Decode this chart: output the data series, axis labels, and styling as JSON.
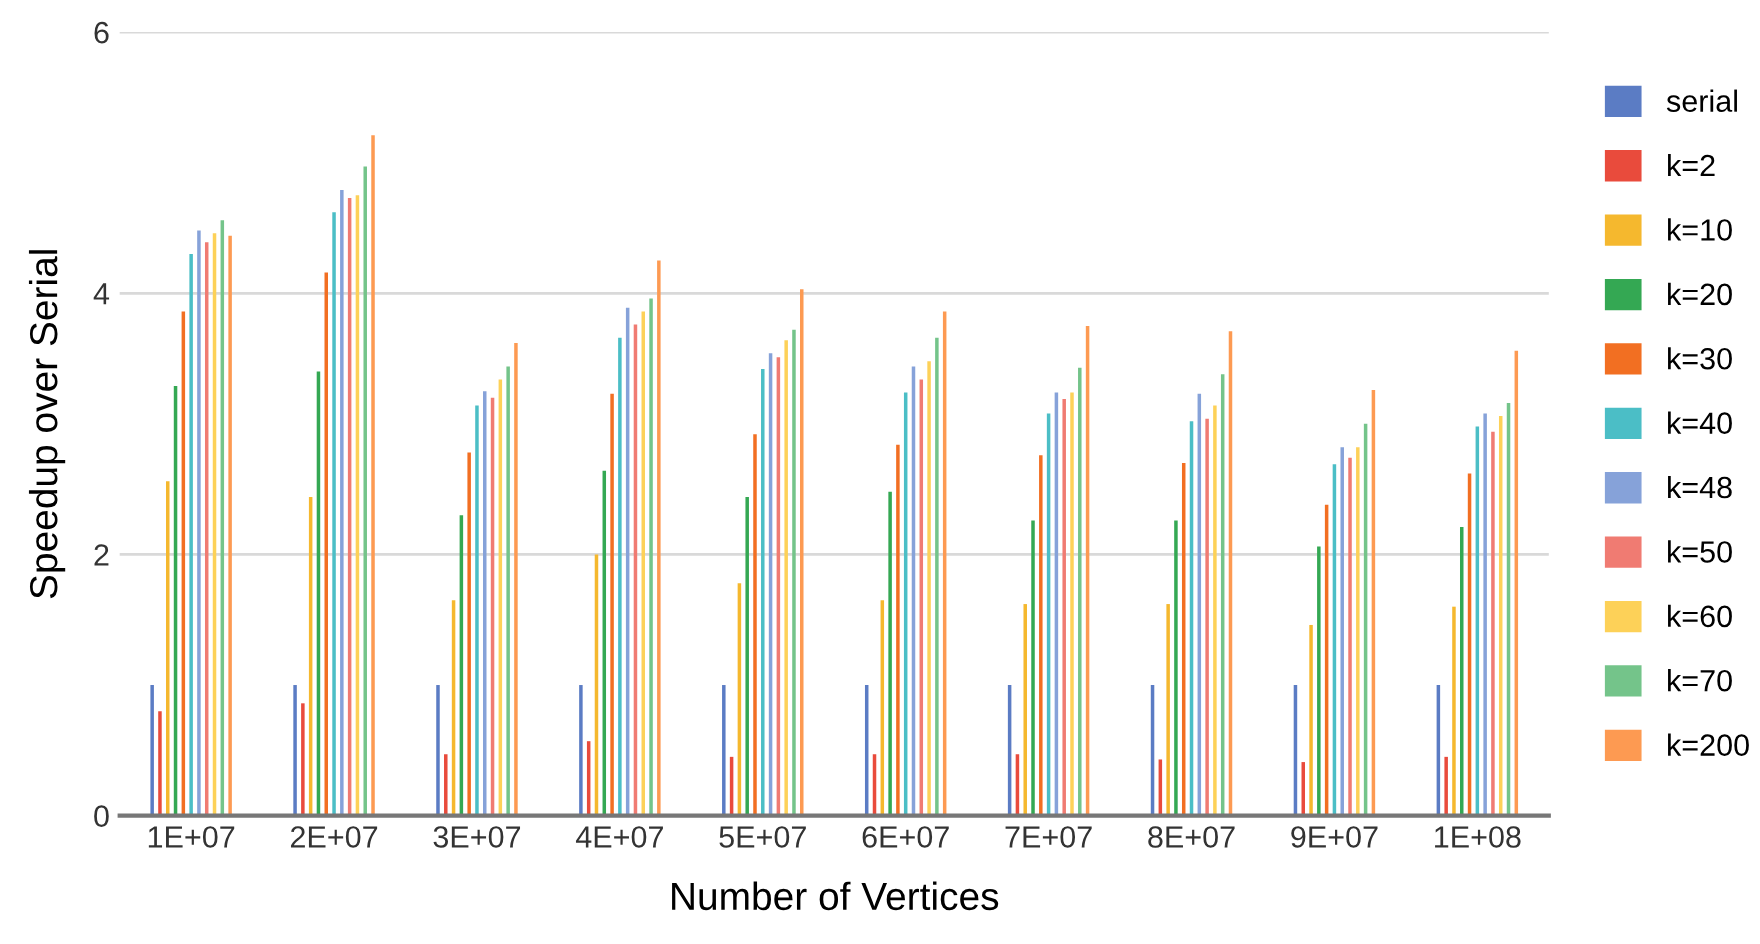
{
  "chart_data": {
    "type": "bar",
    "xlabel": "Number of Vertices",
    "ylabel": "Speedup over Serial",
    "categories": [
      "1E+07",
      "2E+07",
      "3E+07",
      "4E+07",
      "5E+07",
      "6E+07",
      "7E+07",
      "8E+07",
      "9E+07",
      "1E+08"
    ],
    "ylim": [
      0,
      6
    ],
    "yticks": [
      0,
      2,
      4,
      6
    ],
    "grid": "y",
    "legend": "right",
    "series": [
      {
        "name": "serial",
        "color": "#5b7cc4",
        "values": [
          1,
          1,
          1,
          1,
          1,
          1,
          1,
          1,
          1,
          1
        ]
      },
      {
        "name": "k=2",
        "color": "#e94b3c",
        "values": [
          0.8,
          0.86,
          0.47,
          0.57,
          0.45,
          0.47,
          0.47,
          0.43,
          0.41,
          0.45
        ]
      },
      {
        "name": "k=10",
        "color": "#f5b82e",
        "values": [
          2.56,
          2.44,
          1.65,
          2.0,
          1.78,
          1.65,
          1.62,
          1.62,
          1.46,
          1.6
        ]
      },
      {
        "name": "k=20",
        "color": "#34a853",
        "values": [
          3.29,
          3.4,
          2.3,
          2.64,
          2.44,
          2.48,
          2.26,
          2.26,
          2.06,
          2.21
        ]
      },
      {
        "name": "k=30",
        "color": "#f26f22",
        "values": [
          3.86,
          4.16,
          2.78,
          3.23,
          2.92,
          2.84,
          2.76,
          2.7,
          2.38,
          2.62
        ]
      },
      {
        "name": "k=40",
        "color": "#4bbec6",
        "values": [
          4.3,
          4.62,
          3.14,
          3.66,
          3.42,
          3.24,
          3.08,
          3.02,
          2.69,
          2.98
        ]
      },
      {
        "name": "k=48",
        "color": "#86a2d9",
        "values": [
          4.48,
          4.79,
          3.25,
          3.89,
          3.54,
          3.44,
          3.24,
          3.23,
          2.82,
          3.08
        ]
      },
      {
        "name": "k=50",
        "color": "#f07b72",
        "values": [
          4.39,
          4.73,
          3.2,
          3.76,
          3.51,
          3.34,
          3.19,
          3.04,
          2.74,
          2.94
        ]
      },
      {
        "name": "k=60",
        "color": "#fdd158",
        "values": [
          4.46,
          4.75,
          3.34,
          3.86,
          3.64,
          3.48,
          3.24,
          3.14,
          2.82,
          3.06
        ]
      },
      {
        "name": "k=70",
        "color": "#74c48a",
        "values": [
          4.56,
          4.97,
          3.44,
          3.96,
          3.72,
          3.66,
          3.43,
          3.38,
          3.0,
          3.16
        ]
      },
      {
        "name": "k=200",
        "color": "#fd9a52",
        "values": [
          4.44,
          5.21,
          3.62,
          4.25,
          4.03,
          3.86,
          3.75,
          3.71,
          3.26,
          3.56
        ]
      }
    ]
  }
}
